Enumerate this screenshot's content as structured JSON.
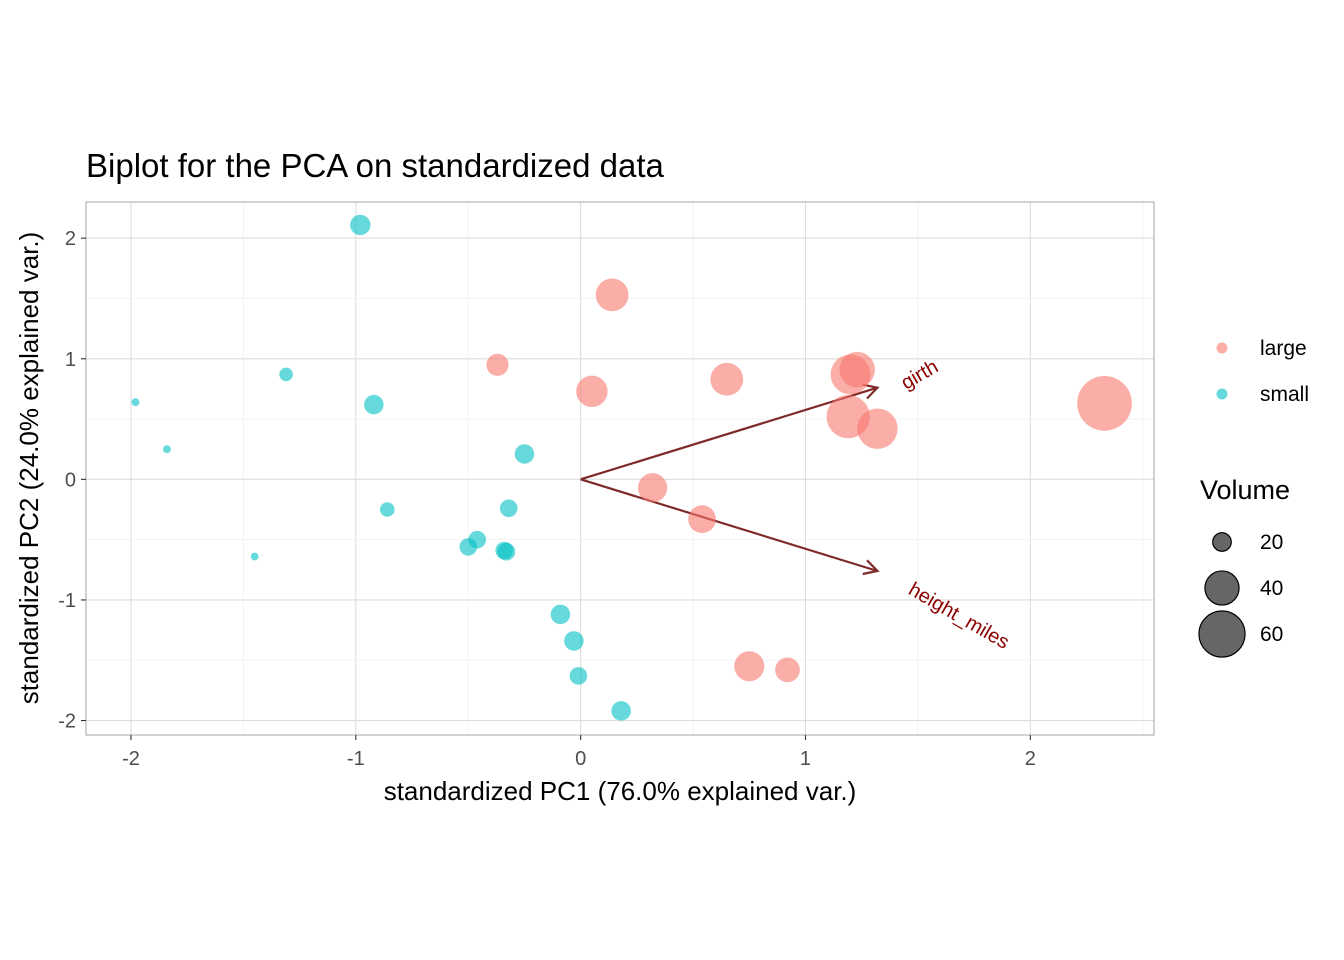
{
  "chart_data": {
    "type": "scatter",
    "title": "Biplot for the PCA on standardized data",
    "xlabel": "standardized PC1 (76.0% explained var.)",
    "ylabel": "standardized PC2 (24.0% explained var.)",
    "xlim": [
      -2.2,
      2.55
    ],
    "ylim": [
      -2.12,
      2.3
    ],
    "x_ticks": [
      -2,
      -1,
      0,
      1,
      2
    ],
    "x_tick_labels": [
      "-2",
      "-1",
      "0",
      "1",
      "2"
    ],
    "y_ticks": [
      -2,
      -1,
      0,
      1,
      2
    ],
    "y_tick_labels": [
      "-2",
      "-1",
      "0",
      "1",
      "2"
    ],
    "grid": true,
    "legend_position": "right",
    "color_legend": {
      "entries": [
        {
          "label": "large",
          "color": "#F8766D"
        },
        {
          "label": "small",
          "color": "#00BFC4"
        }
      ]
    },
    "size_legend": {
      "title": "Volume",
      "entries": [
        {
          "label": "20",
          "value": 20
        },
        {
          "label": "40",
          "value": 40
        },
        {
          "label": "60",
          "value": 60
        }
      ]
    },
    "series": [
      {
        "name": "large",
        "color": "#F8766D",
        "points": [
          {
            "x": 0.14,
            "y": 1.53,
            "volume": 38
          },
          {
            "x": -0.37,
            "y": 0.95,
            "volume": 24
          },
          {
            "x": 0.05,
            "y": 0.73,
            "volume": 36
          },
          {
            "x": 0.65,
            "y": 0.83,
            "volume": 38
          },
          {
            "x": 1.2,
            "y": 0.87,
            "volume": 49
          },
          {
            "x": 1.23,
            "y": 0.91,
            "volume": 42
          },
          {
            "x": 1.19,
            "y": 0.52,
            "volume": 55
          },
          {
            "x": 1.32,
            "y": 0.42,
            "volume": 50
          },
          {
            "x": 2.33,
            "y": 0.63,
            "volume": 77
          },
          {
            "x": 0.32,
            "y": -0.07,
            "volume": 33
          },
          {
            "x": 0.54,
            "y": -0.33,
            "volume": 31
          },
          {
            "x": 0.75,
            "y": -1.55,
            "volume": 34
          },
          {
            "x": 0.92,
            "y": -1.58,
            "volume": 27
          }
        ]
      },
      {
        "name": "small",
        "color": "#00BFC4",
        "points": [
          {
            "x": -0.98,
            "y": 2.11,
            "volume": 22
          },
          {
            "x": -1.31,
            "y": 0.87,
            "volume": 15
          },
          {
            "x": -0.92,
            "y": 0.62,
            "volume": 21
          },
          {
            "x": -1.98,
            "y": 0.64,
            "volume": 10.3
          },
          {
            "x": -1.84,
            "y": 0.25,
            "volume": 10.3
          },
          {
            "x": -0.25,
            "y": 0.21,
            "volume": 21
          },
          {
            "x": -0.86,
            "y": -0.25,
            "volume": 16
          },
          {
            "x": -0.32,
            "y": -0.24,
            "volume": 19
          },
          {
            "x": -0.46,
            "y": -0.5,
            "volume": 19
          },
          {
            "x": -0.5,
            "y": -0.56,
            "volume": 19
          },
          {
            "x": -0.34,
            "y": -0.59,
            "volume": 19
          },
          {
            "x": -0.33,
            "y": -0.6,
            "volume": 19
          },
          {
            "x": -1.45,
            "y": -0.64,
            "volume": 10.2
          },
          {
            "x": -0.09,
            "y": -1.12,
            "volume": 21
          },
          {
            "x": -0.03,
            "y": -1.34,
            "volume": 21
          },
          {
            "x": -0.01,
            "y": -1.63,
            "volume": 19
          },
          {
            "x": 0.18,
            "y": -1.92,
            "volume": 21
          }
        ]
      }
    ],
    "loadings": [
      {
        "label": "girth",
        "x": 1.32,
        "y": 0.76,
        "label_x": 1.51,
        "label_y": 0.86,
        "angle": 30,
        "color": "#8B0000"
      },
      {
        "label": "height_miles",
        "x": 1.32,
        "y": -0.76,
        "label_x": 1.68,
        "label_y": -1.14,
        "angle": -30,
        "color": "#8B0000"
      }
    ]
  }
}
